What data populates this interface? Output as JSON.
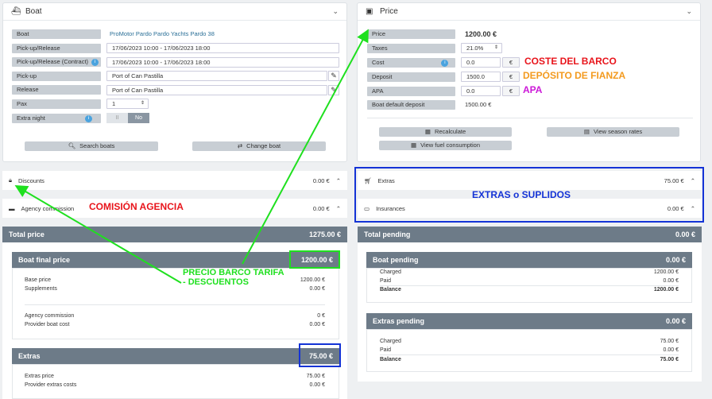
{
  "boat_panel": {
    "title": "Boat",
    "rows": [
      {
        "label": "Boat",
        "value": "ProMotor Pardo Pardo Yachts Pardo 38"
      },
      {
        "label": "Pick-up/Release",
        "value": "17/06/2023 10:00 - 17/06/2023 18:00"
      },
      {
        "label": "Pick-up/Release (Contract)",
        "value": "17/06/2023 10:00 - 17/06/2023 18:00"
      },
      {
        "label": "Pick-up",
        "value": "Port of Can Pastilla"
      },
      {
        "label": "Release",
        "value": "Port of Can Pastilla"
      },
      {
        "label": "Pax",
        "value": "1"
      },
      {
        "label": "Extra night",
        "toggle_off": "II",
        "toggle_no": "No"
      }
    ],
    "search_button": "Search boats",
    "change_button": "Change boat"
  },
  "price_panel": {
    "title": "Price",
    "rows": [
      {
        "label": "Price",
        "value": "1200.00 €"
      },
      {
        "label": "Taxes",
        "value": "21.0%"
      },
      {
        "label": "Cost",
        "value": "0.0",
        "unit": "€"
      },
      {
        "label": "Deposit",
        "value": "1500.0",
        "unit": "€"
      },
      {
        "label": "APA",
        "value": "0.0",
        "unit": "€"
      },
      {
        "label": "Boat default deposit",
        "value": "1500.00 €"
      }
    ],
    "recalculate": "Recalculate",
    "season_rates": "View season rates",
    "fuel": "View fuel consumption"
  },
  "discounts": {
    "label": "Discounts",
    "amount": "0.00 €"
  },
  "agency": {
    "label": "Agency commission",
    "amount": "0.00 €"
  },
  "extras_row": {
    "label": "Extras",
    "amount": "75.00 €"
  },
  "insurances_row": {
    "label": "Insurances",
    "amount": "0.00 €"
  },
  "total_price": {
    "label": "Total price",
    "amount": "1275.00 €"
  },
  "boat_final": {
    "label": "Boat final price",
    "amount": "1200.00 €",
    "lines": [
      {
        "label": "Base price",
        "value": "1200.00 €"
      },
      {
        "label": "Supplements",
        "value": "0.00 €"
      },
      {
        "label": "Agency commission",
        "value": "0 €"
      },
      {
        "label": "Provider boat cost",
        "value": "0.00 €"
      }
    ]
  },
  "extras_block": {
    "label": "Extras",
    "amount": "75.00 €",
    "lines": [
      {
        "label": "Extras price",
        "value": "75.00 €"
      },
      {
        "label": "Provider extras costs",
        "value": "0.00 €"
      }
    ]
  },
  "total_pending": {
    "label": "Total pending",
    "amount": "0.00 €"
  },
  "boat_pending": {
    "label": "Boat pending",
    "amount": "0.00 €",
    "lines": [
      {
        "label": "Charged",
        "value": "1200.00 €"
      },
      {
        "label": "Paid",
        "value": "0.00 €"
      },
      {
        "label": "Balance",
        "value": "1200.00 €"
      }
    ]
  },
  "extras_pending": {
    "label": "Extras pending",
    "amount": "0.00 €",
    "lines": [
      {
        "label": "Charged",
        "value": "75.00 €"
      },
      {
        "label": "Paid",
        "value": "0.00 €"
      },
      {
        "label": "Balance",
        "value": "75.00 €"
      }
    ]
  },
  "annotations": {
    "coste": "COSTE DEL BARCO",
    "deposito": "DEPÓSITO DE FIANZA",
    "apa": "APA",
    "comision": "COMISIÓN AGENCIA",
    "extras_suplidos": "EXTRAS o SUPLIDOS",
    "precio_line1": "PRECIO BARCO TARIFA",
    "precio_line2": "- DESCUENTOS"
  },
  "colors": {
    "red": "#e8141b",
    "orange": "#f39a1e",
    "magenta": "#cc19d8",
    "blue": "#1433d6",
    "green": "#1fe01f"
  }
}
